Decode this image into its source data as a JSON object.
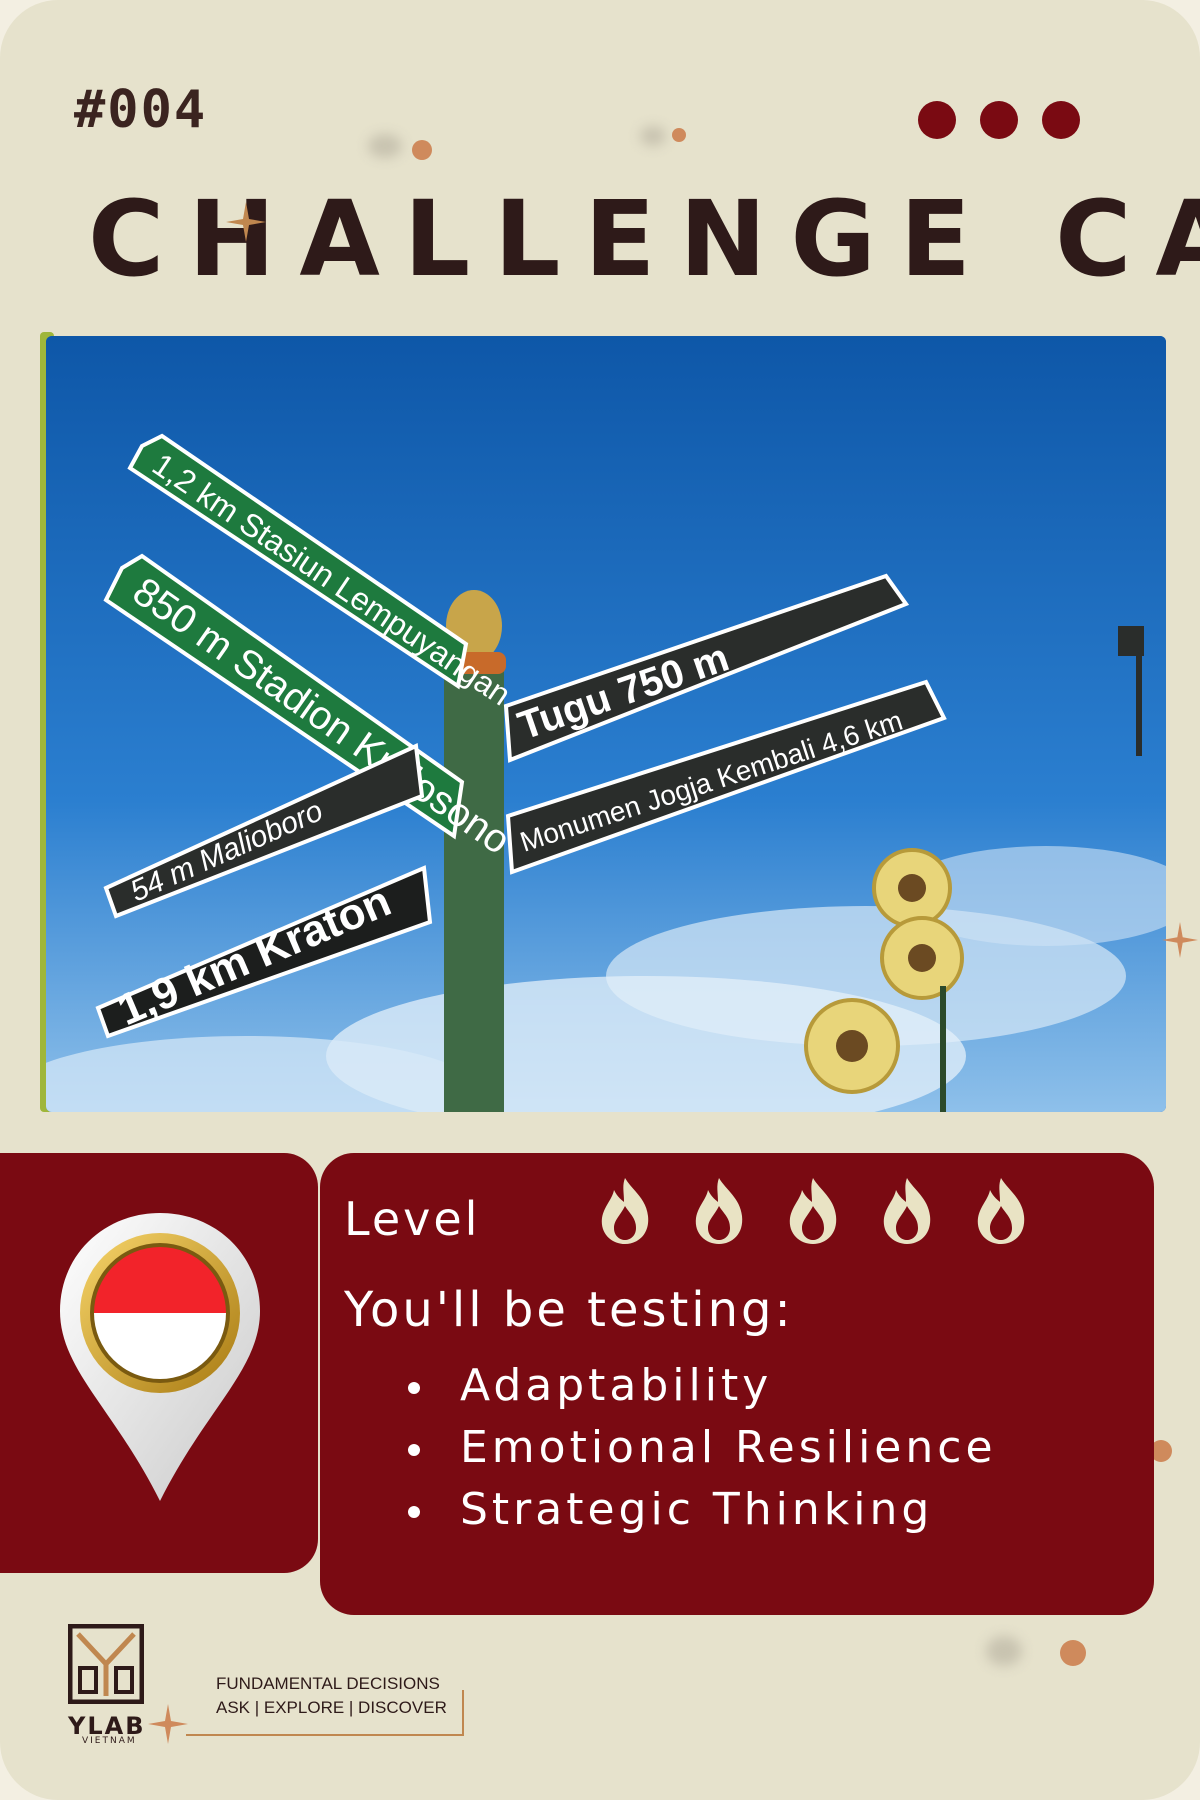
{
  "card": {
    "number": "#004",
    "title": "CHALLENGE CARD",
    "colors": {
      "background": "#e6e2cc",
      "panel": "#7a0a12",
      "flame": "#e9e3c4",
      "text_dark": "#2e1a19"
    }
  },
  "photo": {
    "signs": [
      "1,2 km Stasiun Lempuyangan",
      "850 m Stadion Kridosono",
      "54 m Malioboro",
      "1,9 km Kraton",
      "Tugu 750 m",
      "Monumen Jogja Kembali 4,6 km"
    ]
  },
  "location": {
    "flag_icon": "indonesia-flag-pin-icon"
  },
  "challenge": {
    "level_label": "Level",
    "level_value": 5,
    "level_max": 5,
    "testing_label": "You'll be testing:",
    "skills": [
      "Adaptability",
      "Emotional Resilience",
      "Strategic Thinking"
    ]
  },
  "brand": {
    "logo_text": "YLAB",
    "logo_subtext": "VIETNAM",
    "tagline_line1": "FUNDAMENTAL DECISIONS",
    "tagline_line2": "ASK | EXPLORE | DISCOVER"
  }
}
